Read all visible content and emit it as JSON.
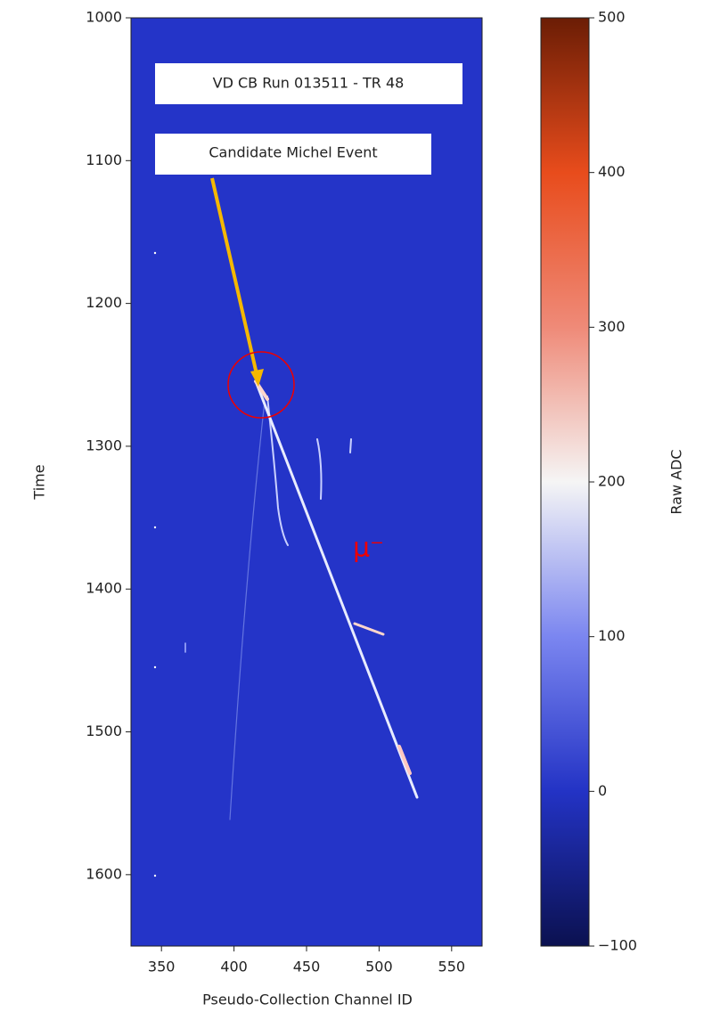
{
  "chart_data": {
    "type": "heatmap",
    "xlabel": "Pseudo-Collection Channel ID",
    "ylabel": "Time",
    "xlim": [
      329,
      571
    ],
    "ylim": [
      1650,
      1000
    ],
    "xticks": [
      350,
      400,
      450,
      500,
      550
    ],
    "yticks": [
      1000,
      1100,
      1200,
      1300,
      1400,
      1500,
      1600
    ],
    "background_color": "#2434c8",
    "annotations": [
      "VD CB Run 013511 - TR 48",
      "Candidate Michel Event",
      "μ⁻"
    ],
    "colorbar": {
      "label": "Raw ADC",
      "lim": [
        -100,
        500
      ],
      "ticks": [
        {
          "value": -100,
          "label": "−100"
        },
        0,
        100,
        200,
        300,
        400,
        500
      ],
      "colors": [
        "#0b1150",
        "#2333c5",
        "#7b86f0",
        "#f5f5f5",
        "#ef8a78",
        "#e84c1c",
        "#6b1d05"
      ]
    }
  }
}
